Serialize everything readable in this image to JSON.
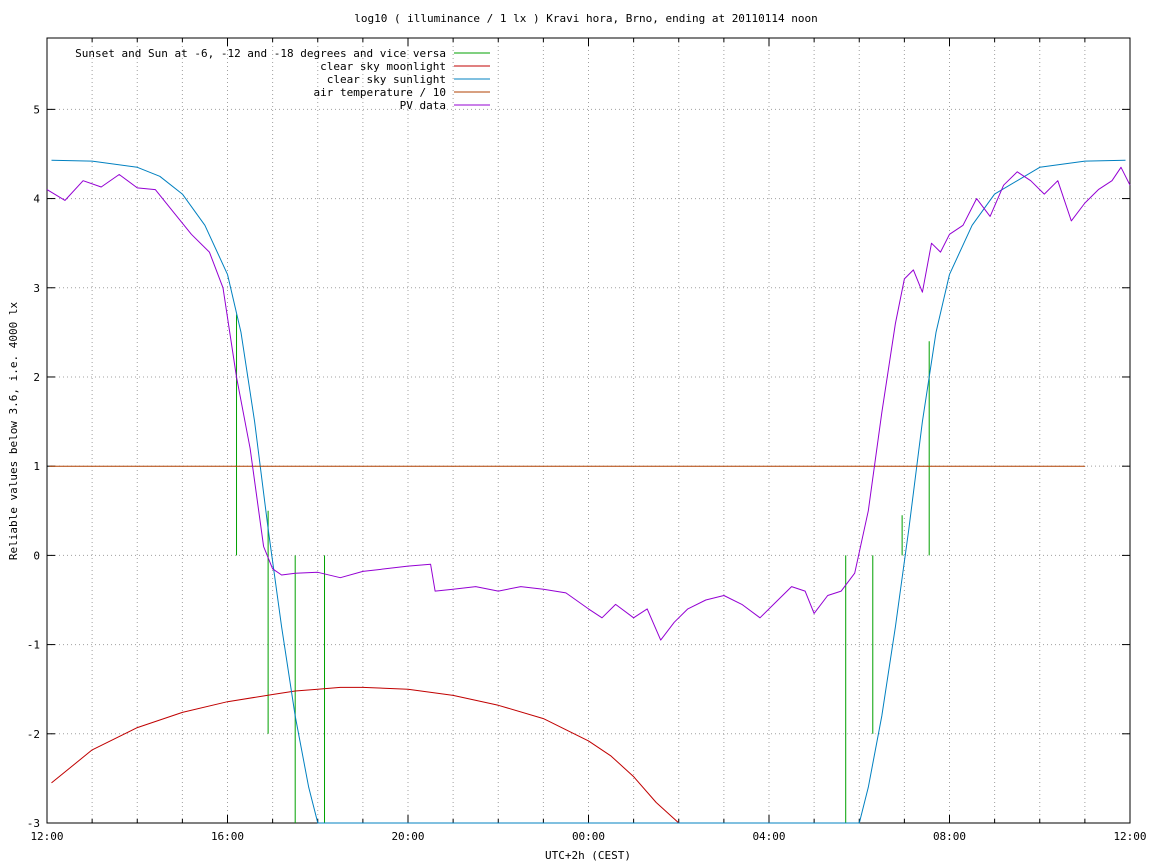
{
  "chart_data": {
    "type": "line",
    "title": "log10 ( illuminance / 1 lx ) Kravi hora, Brno, ending at 20110114 noon",
    "xlabel": "UTC+2h (CEST)",
    "ylabel": "Reliable values below 3.6, i.e. 4000 lx",
    "xlim": [
      0,
      24
    ],
    "ylim": [
      -3,
      5.8
    ],
    "x_ticks": [
      {
        "v": 0,
        "label": "12:00"
      },
      {
        "v": 4,
        "label": "16:00"
      },
      {
        "v": 8,
        "label": "20:00"
      },
      {
        "v": 12,
        "label": "00:00"
      },
      {
        "v": 16,
        "label": "04:00"
      },
      {
        "v": 20,
        "label": "08:00"
      },
      {
        "v": 24,
        "label": "12:00"
      }
    ],
    "x_minor": [
      1,
      2,
      3,
      5,
      6,
      7,
      9,
      10,
      11,
      13,
      14,
      15,
      17,
      18,
      19,
      21,
      22,
      23
    ],
    "y_ticks": [
      {
        "v": -3,
        "label": "-3"
      },
      {
        "v": -2,
        "label": "-2"
      },
      {
        "v": -1,
        "label": "-1"
      },
      {
        "v": 0,
        "label": "0"
      },
      {
        "v": 1,
        "label": "1"
      },
      {
        "v": 2,
        "label": "2"
      },
      {
        "v": 3,
        "label": "3"
      },
      {
        "v": 4,
        "label": "4"
      },
      {
        "v": 5,
        "label": "5"
      }
    ],
    "grid": true,
    "legend_position": "top-left",
    "series": [
      {
        "name": "Sunset and Sun at -6, -12 and -18 degrees and vice versa",
        "color": "#00a000",
        "kind": "vlines",
        "x": [
          4.2,
          4.9,
          5.5,
          6.15,
          17.7,
          18.3,
          18.95,
          19.55
        ],
        "y_top": [
          2.7,
          0.5,
          0,
          0,
          0,
          0,
          0.45,
          2.4
        ],
        "y_bottom": [
          0,
          -2.0,
          -3,
          -3,
          -3,
          -2.0,
          0,
          0
        ]
      },
      {
        "name": "clear sky moonlight",
        "color": "#c00000",
        "x": [
          0.1,
          1,
          2,
          3,
          4,
          5,
          5.5,
          6,
          6.5,
          7,
          8,
          9,
          10,
          11,
          12,
          12.5,
          13,
          13.5,
          14
        ],
        "y": [
          -2.55,
          -2.18,
          -1.93,
          -1.76,
          -1.64,
          -1.56,
          -1.52,
          -1.5,
          -1.48,
          -1.48,
          -1.5,
          -1.57,
          -1.68,
          -1.83,
          -2.08,
          -2.25,
          -2.48,
          -2.77,
          -3
        ]
      },
      {
        "name": "clear sky sunlight",
        "color": "#0080c0",
        "x": [
          0.1,
          1,
          2,
          2.5,
          3,
          3.5,
          4,
          4.3,
          4.6,
          4.9,
          5.2,
          5.5,
          5.8,
          6,
          18,
          18.2,
          18.5,
          18.8,
          19.1,
          19.4,
          19.7,
          20,
          20.5,
          21,
          22,
          23,
          23.9
        ],
        "y": [
          4.43,
          4.42,
          4.35,
          4.25,
          4.05,
          3.7,
          3.15,
          2.5,
          1.5,
          0.3,
          -0.8,
          -1.8,
          -2.6,
          -3,
          -3,
          -2.6,
          -1.8,
          -0.8,
          0.3,
          1.5,
          2.5,
          3.15,
          3.7,
          4.05,
          4.35,
          4.42,
          4.43
        ]
      },
      {
        "name": "air temperature / 10",
        "color": "#b04000",
        "x": [
          0.05,
          23.0
        ],
        "y": [
          1.0,
          1.0
        ]
      },
      {
        "name": "PV data",
        "color": "#9400d3",
        "x": [
          0,
          0.4,
          0.8,
          1.2,
          1.6,
          2.0,
          2.4,
          2.8,
          3.2,
          3.6,
          3.9,
          4.2,
          4.5,
          4.8,
          5.0,
          5.2,
          5.5,
          6.0,
          6.5,
          7.0,
          7.5,
          8.0,
          8.5,
          8.6,
          9.0,
          9.5,
          10.0,
          10.5,
          11.0,
          11.5,
          12.0,
          12.3,
          12.6,
          13.0,
          13.3,
          13.6,
          13.9,
          14.2,
          14.6,
          15.0,
          15.4,
          15.8,
          16.2,
          16.5,
          16.8,
          17.0,
          17.3,
          17.6,
          17.9,
          18.2,
          18.5,
          18.8,
          19.0,
          19.2,
          19.4,
          19.6,
          19.8,
          20.0,
          20.3,
          20.6,
          20.9,
          21.2,
          21.5,
          21.8,
          22.1,
          22.4,
          22.7,
          23.0,
          23.3,
          23.6,
          23.8,
          24.0
        ],
        "y": [
          4.1,
          3.98,
          4.2,
          4.13,
          4.27,
          4.12,
          4.1,
          3.85,
          3.6,
          3.4,
          3.0,
          2.0,
          1.2,
          0.1,
          -0.15,
          -0.22,
          -0.2,
          -0.19,
          -0.25,
          -0.18,
          -0.15,
          -0.12,
          -0.1,
          -0.4,
          -0.38,
          -0.35,
          -0.4,
          -0.35,
          -0.38,
          -0.42,
          -0.6,
          -0.7,
          -0.55,
          -0.7,
          -0.6,
          -0.95,
          -0.75,
          -0.6,
          -0.5,
          -0.45,
          -0.55,
          -0.7,
          -0.5,
          -0.35,
          -0.4,
          -0.65,
          -0.45,
          -0.4,
          -0.2,
          0.5,
          1.6,
          2.6,
          3.1,
          3.2,
          2.95,
          3.5,
          3.4,
          3.6,
          3.7,
          4.0,
          3.8,
          4.15,
          4.3,
          4.2,
          4.05,
          4.2,
          3.75,
          3.95,
          4.1,
          4.2,
          4.35,
          4.15
        ]
      }
    ]
  }
}
